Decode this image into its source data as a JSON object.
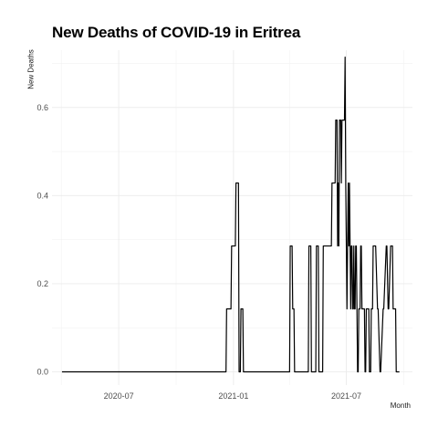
{
  "chart_data": {
    "type": "line",
    "title": "New Deaths of COVID-19 in Eritrea",
    "xlabel": "Month",
    "ylabel": "New Deaths",
    "x_ticks": [
      "2020-07",
      "2021-01",
      "2021-07"
    ],
    "y_ticks": [
      "0.0",
      "0.2",
      "0.4",
      "0.6"
    ],
    "xlim": [
      "2020-03-16",
      "2021-10-15"
    ],
    "ylim": [
      -0.03,
      0.73
    ],
    "grid": true,
    "line_color": "#000000",
    "series": [
      {
        "x": [
          "2020-04-01",
          "2020-12-20",
          "2020-12-21",
          "2020-12-28",
          "2020-12-29",
          "2021-01-01",
          "2021-01-02",
          "2021-01-04",
          "2021-01-05",
          "2021-01-09",
          "2021-01-10",
          "2021-01-12",
          "2021-01-13",
          "2021-01-16",
          "2021-01-17",
          "2021-04-01",
          "2021-04-02",
          "2021-04-05",
          "2021-04-06",
          "2021-04-08",
          "2021-04-09",
          "2021-05-01",
          "2021-05-02",
          "2021-05-05",
          "2021-05-06",
          "2021-05-13",
          "2021-05-14",
          "2021-05-17",
          "2021-05-18",
          "2021-05-24",
          "2021-05-25",
          "2021-06-07",
          "2021-06-08",
          "2021-06-10",
          "2021-06-11",
          "2021-06-13",
          "2021-06-14",
          "2021-06-16",
          "2021-06-17",
          "2021-06-18",
          "2021-06-19",
          "2021-06-20",
          "2021-06-21",
          "2021-06-22",
          "2021-06-23",
          "2021-06-24",
          "2021-06-25",
          "2021-06-26",
          "2021-06-27",
          "2021-06-28",
          "2021-06-29",
          "2021-06-30",
          "2021-07-01",
          "2021-07-02",
          "2021-07-03",
          "2021-07-04",
          "2021-07-05",
          "2021-07-06",
          "2021-07-07",
          "2021-07-08",
          "2021-07-09",
          "2021-07-10",
          "2021-07-11",
          "2021-07-12",
          "2021-07-13",
          "2021-07-14",
          "2021-07-15",
          "2021-07-16",
          "2021-07-17",
          "2021-07-18",
          "2021-07-19",
          "2021-07-20",
          "2021-07-21",
          "2021-07-22",
          "2021-07-23",
          "2021-07-24",
          "2021-07-25",
          "2021-07-26",
          "2021-07-27",
          "2021-07-28",
          "2021-07-29",
          "2021-07-30",
          "2021-07-31",
          "2021-08-01",
          "2021-08-02",
          "2021-08-03",
          "2021-08-04",
          "2021-08-05",
          "2021-08-06",
          "2021-08-07",
          "2021-08-08",
          "2021-08-09",
          "2021-08-10",
          "2021-08-11",
          "2021-08-12",
          "2021-08-13",
          "2021-08-14",
          "2021-08-16",
          "2021-08-17",
          "2021-08-20",
          "2021-08-21",
          "2021-08-24",
          "2021-08-25",
          "2021-08-29",
          "2021-08-30",
          "2021-09-03",
          "2021-09-04",
          "2021-09-06",
          "2021-09-07",
          "2021-09-10",
          "2021-09-11",
          "2021-09-13",
          "2021-09-14",
          "2021-09-15",
          "2021-09-16",
          "2021-09-17",
          "2021-09-18",
          "2021-09-19",
          "2021-09-20",
          "2021-09-24"
        ],
        "y": [
          0,
          0,
          0.1429,
          0.1429,
          0.2857,
          0.2857,
          0.2857,
          0.2857,
          0.4286,
          0.4286,
          0,
          0,
          0.1429,
          0.1429,
          0,
          0,
          0.2857,
          0.2857,
          0.1429,
          0.1429,
          0,
          0,
          0.2857,
          0.2857,
          0,
          0,
          0.2857,
          0.2857,
          0,
          0,
          0.2857,
          0.2857,
          0.4286,
          0.4286,
          0.4286,
          0.4286,
          0.5714,
          0.5714,
          0.2857,
          0.4286,
          0.2857,
          0.5714,
          0.5714,
          0.5714,
          0.4286,
          0.5714,
          0.5714,
          0.5714,
          0.5714,
          0.5714,
          0.7143,
          0.4286,
          0.2857,
          0.1429,
          0.2857,
          0.4286,
          0.2857,
          0.4286,
          0.2857,
          0.1429,
          0.2857,
          0.2857,
          0.1429,
          0.1429,
          0.2857,
          0.1429,
          0.1429,
          0.2857,
          0.2857,
          0.1429,
          0,
          0,
          0.1429,
          0.1429,
          0.1429,
          0.2857,
          0.2857,
          0.1429,
          0.1429,
          0.1429,
          0.1429,
          0.1429,
          0,
          0,
          0.1429,
          0.1429,
          0.1429,
          0.1429,
          0.1429,
          0,
          0,
          0,
          0.1429,
          0.1429,
          0.1429,
          0.2857,
          0.2857,
          0.2857,
          0.2857,
          0.1429,
          0.1429,
          0,
          0,
          0.1429,
          0.1429,
          0.2857,
          0.2857,
          0.1429,
          0.1429,
          0.2857,
          0.2857,
          0.2857,
          0.1429,
          0.1429,
          0.1429,
          0.1429,
          0.1429,
          0,
          0,
          0
        ]
      }
    ]
  }
}
